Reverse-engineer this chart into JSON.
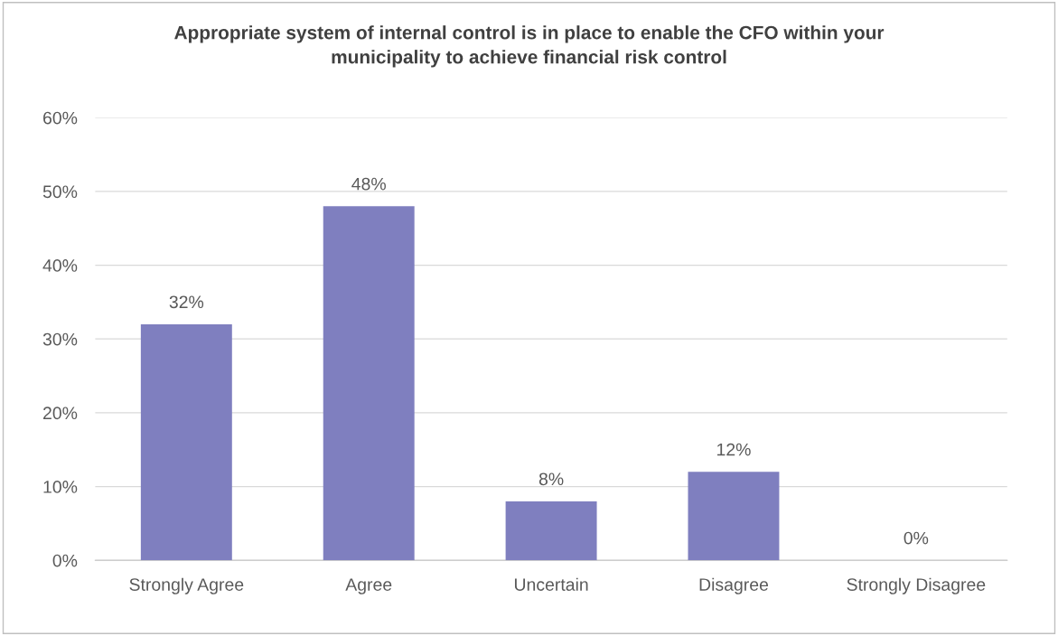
{
  "chart_data": {
    "type": "bar",
    "title": "Appropriate system of internal control is in place to enable the CFO within your\nmunicipality to achieve financial risk control",
    "categories": [
      "Strongly Agree",
      "Agree",
      "Uncertain",
      "Disagree",
      "Strongly Disagree"
    ],
    "values": [
      32,
      48,
      8,
      12,
      0
    ],
    "value_labels": [
      "32%",
      "48%",
      "8%",
      "12%",
      "0%"
    ],
    "color": "#7f7fbf",
    "ylim": [
      0,
      60
    ],
    "yticks": [
      {
        "value": 0,
        "label": "0%"
      },
      {
        "value": 10,
        "label": "10%"
      },
      {
        "value": 20,
        "label": "20%"
      },
      {
        "value": 30,
        "label": "30%"
      },
      {
        "value": 40,
        "label": "40%"
      },
      {
        "value": 50,
        "label": "50%"
      },
      {
        "value": 60,
        "label": "60%"
      }
    ],
    "grid": "y",
    "legend": false
  }
}
